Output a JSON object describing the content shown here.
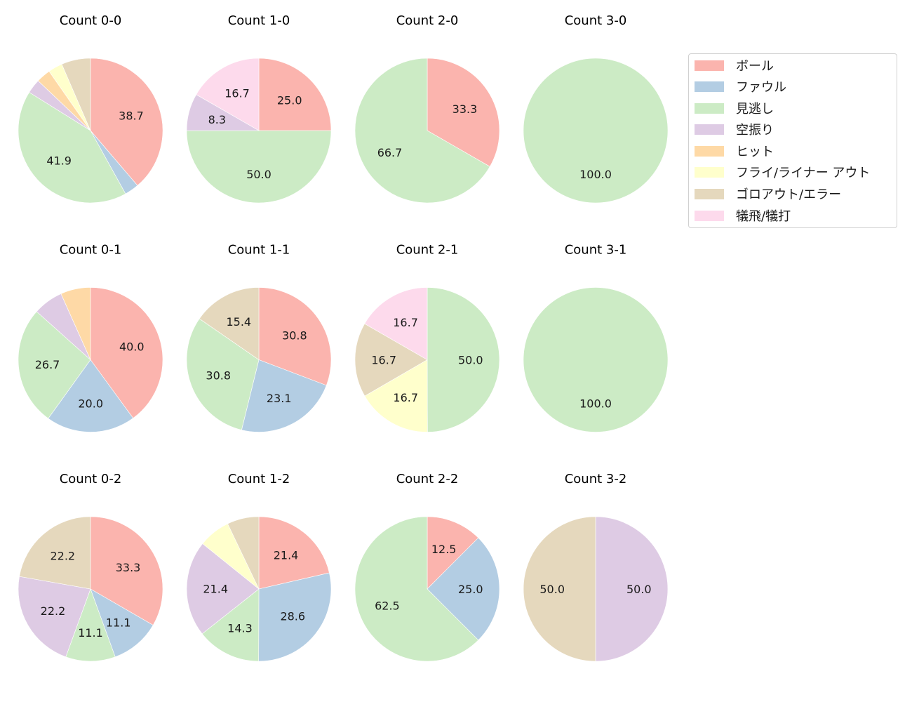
{
  "chart_data": {
    "type": "pie",
    "layout": {
      "rows": 3,
      "cols": 4,
      "start_angle": 90,
      "direction": "clockwise",
      "legend_position": "upper right"
    },
    "legend": [
      {
        "label": "ボール",
        "color": "#fbb4ae"
      },
      {
        "label": "ファウル",
        "color": "#b3cde3"
      },
      {
        "label": "見逃し",
        "color": "#ccebc5"
      },
      {
        "label": "空振り",
        "color": "#decbe4"
      },
      {
        "label": "ヒット",
        "color": "#fed9a6"
      },
      {
        "label": "フライ/ライナー アウト",
        "color": "#ffffcc"
      },
      {
        "label": "ゴロアウト/エラー",
        "color": "#e5d8bd"
      },
      {
        "label": "犠飛/犠打",
        "color": "#fddaec"
      }
    ],
    "categories": [
      "ボール",
      "ファウル",
      "見逃し",
      "空振り",
      "ヒット",
      "フライ/ライナー アウト",
      "ゴロアウト/エラー",
      "犠飛/犠打"
    ],
    "charts": [
      {
        "title": "Count 0-0",
        "row": 0,
        "col": 0,
        "values": [
          38.7,
          3.2,
          41.9,
          3.2,
          3.2,
          3.2,
          6.5,
          0
        ],
        "labels": [
          "38.7",
          "",
          "41.9",
          "",
          "",
          "",
          "",
          ""
        ]
      },
      {
        "title": "Count 1-0",
        "row": 0,
        "col": 1,
        "values": [
          25.0,
          0,
          50.0,
          8.3,
          0,
          0,
          0,
          16.7
        ],
        "labels": [
          "25.0",
          "",
          "50.0",
          "8.3",
          "",
          "",
          "",
          "16.7"
        ]
      },
      {
        "title": "Count 2-0",
        "row": 0,
        "col": 2,
        "values": [
          33.3,
          0,
          66.7,
          0,
          0,
          0,
          0,
          0
        ],
        "labels": [
          "33.3",
          "",
          "66.7",
          "",
          "",
          "",
          "",
          ""
        ]
      },
      {
        "title": "Count 3-0",
        "row": 0,
        "col": 3,
        "values": [
          0,
          0,
          100.0,
          0,
          0,
          0,
          0,
          0
        ],
        "labels": [
          "",
          "",
          "100.0",
          "",
          "",
          "",
          "",
          ""
        ]
      },
      {
        "title": "Count 0-1",
        "row": 1,
        "col": 0,
        "values": [
          40.0,
          20.0,
          26.7,
          6.7,
          6.7,
          0,
          0,
          0
        ],
        "labels": [
          "40.0",
          "20.0",
          "26.7",
          "",
          "",
          "",
          "",
          ""
        ]
      },
      {
        "title": "Count 1-1",
        "row": 1,
        "col": 1,
        "values": [
          30.8,
          23.1,
          30.8,
          0,
          0,
          0,
          15.4,
          0
        ],
        "labels": [
          "30.8",
          "23.1",
          "30.8",
          "",
          "",
          "",
          "15.4",
          ""
        ]
      },
      {
        "title": "Count 2-1",
        "row": 1,
        "col": 2,
        "values": [
          0,
          0,
          50.0,
          0,
          0,
          16.7,
          16.7,
          16.7
        ],
        "labels": [
          "",
          "",
          "50.0",
          "",
          "",
          "16.7",
          "16.7",
          "16.7"
        ]
      },
      {
        "title": "Count 3-1",
        "row": 1,
        "col": 3,
        "values": [
          0,
          0,
          100.0,
          0,
          0,
          0,
          0,
          0
        ],
        "labels": [
          "",
          "",
          "100.0",
          "",
          "",
          "",
          "",
          ""
        ]
      },
      {
        "title": "Count 0-2",
        "row": 2,
        "col": 0,
        "values": [
          33.3,
          11.1,
          11.1,
          22.2,
          0,
          0,
          22.2,
          0
        ],
        "labels": [
          "33.3",
          "11.1",
          "11.1",
          "22.2",
          "",
          "",
          "22.2",
          ""
        ]
      },
      {
        "title": "Count 1-2",
        "row": 2,
        "col": 1,
        "values": [
          21.4,
          28.6,
          14.3,
          21.4,
          0,
          7.1,
          7.1,
          0
        ],
        "labels": [
          "21.4",
          "28.6",
          "14.3",
          "21.4",
          "",
          "",
          "",
          ""
        ]
      },
      {
        "title": "Count 2-2",
        "row": 2,
        "col": 2,
        "values": [
          12.5,
          25.0,
          62.5,
          0,
          0,
          0,
          0,
          0
        ],
        "labels": [
          "12.5",
          "25.0",
          "62.5",
          "",
          "",
          "",
          "",
          ""
        ]
      },
      {
        "title": "Count 3-2",
        "row": 2,
        "col": 3,
        "values": [
          0,
          0,
          0,
          50.0,
          0,
          0,
          50.0,
          0
        ],
        "labels": [
          "",
          "",
          "",
          "50.0",
          "",
          "",
          "50.0",
          ""
        ]
      }
    ]
  }
}
